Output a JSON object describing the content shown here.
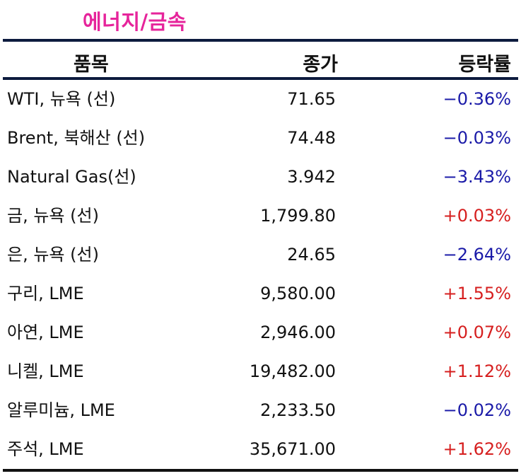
{
  "title": "에너지/금속",
  "columns": {
    "name": "품목",
    "close": "종가",
    "change": "등락률"
  },
  "rows": [
    {
      "name": "WTI, 뉴욕 (선)",
      "close": "71.65",
      "change": "−0.36%",
      "direction": "down"
    },
    {
      "name": "Brent, 북해산 (선)",
      "close": "74.48",
      "change": "−0.03%",
      "direction": "down"
    },
    {
      "name": "Natural Gas(선)",
      "close": "3.942",
      "change": "−3.43%",
      "direction": "down"
    },
    {
      "name": "금, 뉴욕  (선)",
      "close": "1,799.80",
      "change": "+0.03%",
      "direction": "up"
    },
    {
      "name": "은, 뉴욕  (선)",
      "close": "24.65",
      "change": "−2.64%",
      "direction": "down"
    },
    {
      "name": "구리, LME",
      "close": "9,580.00",
      "change": "+1.55%",
      "direction": "up"
    },
    {
      "name": "아연, LME",
      "close": "2,946.00",
      "change": "+0.07%",
      "direction": "up"
    },
    {
      "name": "니켈, LME",
      "close": "19,482.00",
      "change": "+1.12%",
      "direction": "up"
    },
    {
      "name": "알루미늄, LME",
      "close": "2,233.50",
      "change": "−0.02%",
      "direction": "down"
    },
    {
      "name": "주석, LME",
      "close": "35,671.00",
      "change": "+1.62%",
      "direction": "up"
    }
  ],
  "colors": {
    "title": "#e6249b",
    "negative": "#1a1aa8",
    "positive": "#d61f1f",
    "rule": "#0d1b3e"
  }
}
